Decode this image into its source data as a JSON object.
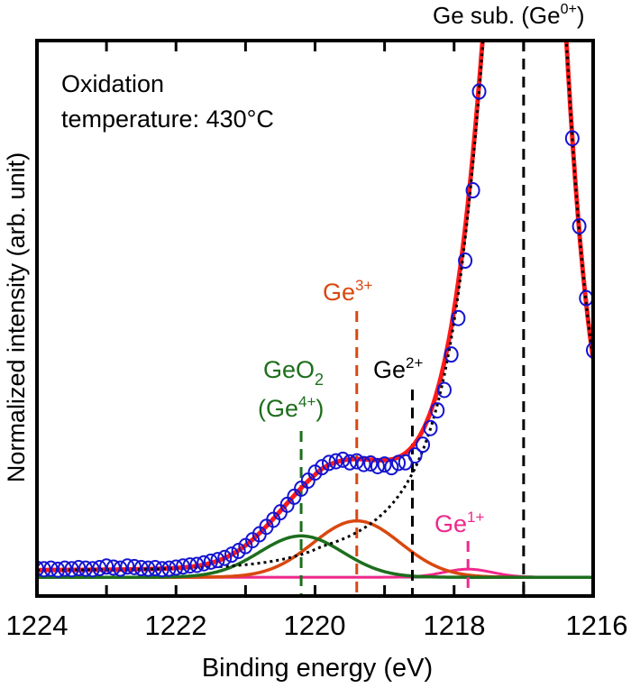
{
  "chart_data": {
    "type": "scatter",
    "xlabel": "Binding energy (eV)",
    "ylabel": "Normalized intensity (arb. unit)",
    "xlim": [
      1224,
      1216
    ],
    "x_reversed": true,
    "ylim": [
      -0.035,
      1.0
    ],
    "xticks": [
      "1224",
      "1222",
      "1220",
      "1218",
      "1216"
    ],
    "xtick_values": [
      1224,
      1222,
      1220,
      1218,
      1216
    ],
    "minor_xtick_step": 1,
    "yticks": [],
    "grid": false,
    "legend": "none",
    "annotation_title": "Oxidation",
    "annotation_line2": "temperature: 430°C",
    "colors": {
      "data": "#1414d2",
      "fit": "#ff1a1a",
      "substrate": "#000000",
      "GeO2": "#1d6e1d",
      "Ge3": "#d9480f",
      "Ge2": "#000000",
      "Ge1": "#f0288c"
    },
    "measured": {
      "marker": "open-circle",
      "x": [
        1224.0,
        1223.9,
        1223.8,
        1223.7,
        1223.6,
        1223.5,
        1223.4,
        1223.3,
        1223.2,
        1223.1,
        1223.0,
        1222.9,
        1222.8,
        1222.7,
        1222.6,
        1222.5,
        1222.4,
        1222.3,
        1222.2,
        1222.1,
        1222.0,
        1221.9,
        1221.8,
        1221.7,
        1221.6,
        1221.5,
        1221.4,
        1221.3,
        1221.2,
        1221.1,
        1221.0,
        1220.9,
        1220.8,
        1220.7,
        1220.6,
        1220.5,
        1220.4,
        1220.3,
        1220.2,
        1220.1,
        1220.0,
        1219.9,
        1219.8,
        1219.7,
        1219.6,
        1219.5,
        1219.4,
        1219.3,
        1219.2,
        1219.1,
        1219.0,
        1218.9,
        1218.8,
        1218.7,
        1218.56,
        1218.45,
        1218.34,
        1218.24,
        1218.14,
        1218.04,
        1217.94,
        1217.84,
        1217.73,
        1217.64,
        1216.3,
        1216.2,
        1216.1,
        1216.0
      ],
      "y": [
        0.016,
        0.015,
        0.016,
        0.014,
        0.016,
        0.015,
        0.017,
        0.016,
        0.015,
        0.017,
        0.02,
        0.018,
        0.016,
        0.02,
        0.019,
        0.017,
        0.016,
        0.017,
        0.015,
        0.016,
        0.018,
        0.02,
        0.022,
        0.023,
        0.026,
        0.029,
        0.032,
        0.036,
        0.042,
        0.049,
        0.058,
        0.069,
        0.08,
        0.094,
        0.107,
        0.121,
        0.135,
        0.15,
        0.165,
        0.18,
        0.195,
        0.205,
        0.213,
        0.216,
        0.219,
        0.214,
        0.216,
        0.211,
        0.212,
        0.207,
        0.21,
        0.205,
        0.213,
        0.214,
        0.227,
        0.247,
        0.278,
        0.311,
        0.349,
        0.415,
        0.483,
        0.59,
        0.721,
        0.905,
        0.818,
        0.654,
        0.52,
        0.423
      ]
    },
    "background": 0.013,
    "components": [
      {
        "id": "Ge0",
        "label": "Ge sub. (Ge",
        "sup": "0+",
        "label_end": ")",
        "center": 1217.0,
        "peak_center": 1216.9,
        "amplitude": 1.83,
        "style": "dotted"
      },
      {
        "id": "GeO2",
        "label": "GeO",
        "sub": "2",
        "label2": "(Ge",
        "sup": "4+",
        "label2_end": ")",
        "center": 1220.2,
        "amplitude": 0.077,
        "sigma": 0.6
      },
      {
        "id": "Ge3",
        "label": "Ge",
        "sup": "3+",
        "center": 1219.4,
        "amplitude": 0.105,
        "sigma": 0.63
      },
      {
        "id": "Ge2",
        "label": "Ge",
        "sup": "2+",
        "center": 1218.6,
        "amplitude": 0.0,
        "sigma": 0.5
      },
      {
        "id": "Ge1",
        "label": "Ge",
        "sup": "1+",
        "center": 1217.8,
        "amplitude": 0.015,
        "sigma": 0.35
      }
    ]
  }
}
